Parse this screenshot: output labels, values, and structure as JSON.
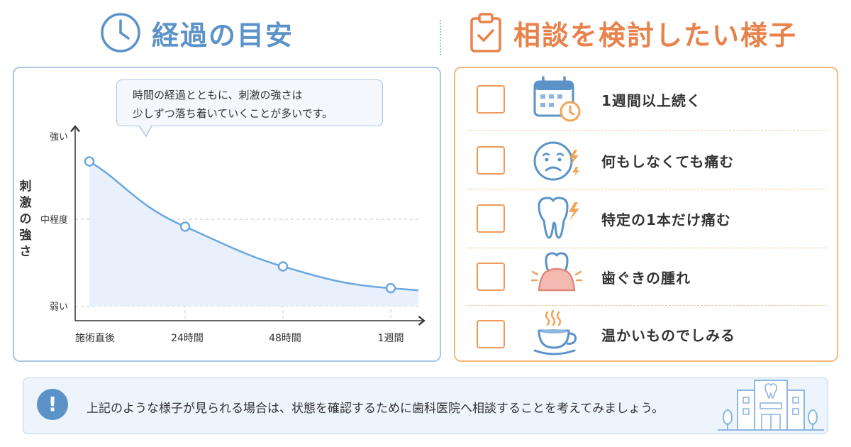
{
  "left_heading": {
    "title": "経過の目安",
    "icon": "clock-icon"
  },
  "right_heading": {
    "title": "相談を検討したい様子",
    "icon": "clipboard-check-icon"
  },
  "bubble": {
    "line1": "時間の経過とともに、刺激の強さは",
    "line2": "少しずつ落ち着いていくことが多いです。"
  },
  "chart_data": {
    "type": "line",
    "ylabel": "刺激の強さ",
    "y_ticks": [
      "強い",
      "中程度",
      "弱い"
    ],
    "x_ticks": [
      "施術直後",
      "24時間",
      "48時間",
      "1週間"
    ],
    "series": [
      {
        "points": [
          {
            "x": "施術直後",
            "y": 3.0
          },
          {
            "x": "24時間",
            "y": 2.1
          },
          {
            "x": "48時間",
            "y": 1.55
          },
          {
            "x": "1週間",
            "y": 1.25
          }
        ]
      }
    ],
    "ylim": [
      0.8,
      3.25
    ],
    "grid": "dashed horizontal at 中程度 and 弱い; dashed vertical drop lines at each marker",
    "colors": {
      "line": "#6aa7e0",
      "fill": "#e7f0fb",
      "marker_fill": "#ffffff"
    }
  },
  "checklist": [
    {
      "label": "1週間以上続く",
      "icon": "calendar-clock-icon"
    },
    {
      "label": "何もしなくても痛む",
      "icon": "worried-face-icon"
    },
    {
      "label": "特定の1本だけ痛む",
      "icon": "tooth-pain-icon"
    },
    {
      "label": "歯ぐきの腫れ",
      "icon": "swollen-gum-icon"
    },
    {
      "label": "温かいものでしみる",
      "icon": "hot-cup-icon"
    }
  ],
  "note": {
    "text": "上記のような様子が見られる場合は、状態を確認するために歯科医院へ相談することを考えてみましょう。",
    "icon": "exclamation-icon"
  },
  "building_icon": "dental-clinic-icon",
  "colors": {
    "blue": "#5b92c8",
    "orange": "#e8824a"
  }
}
